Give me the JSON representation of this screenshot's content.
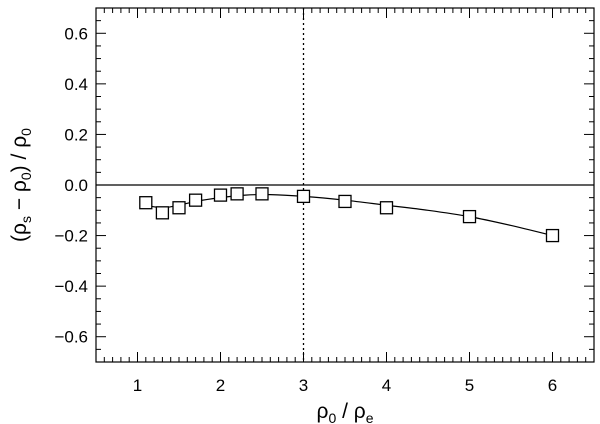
{
  "chart_data": {
    "type": "scatter",
    "xlabel": {
      "symbol": "ρ",
      "sub": "0",
      "sep": " / ",
      "symbol2": "ρ",
      "sub2": "e"
    },
    "ylabel": {
      "open": "(",
      "symbol": "ρ",
      "sub": "s",
      "minus": " − ",
      "symbol2": "ρ",
      "sub2": "0",
      "close": ")",
      "sep": " / ",
      "symbol3": "ρ",
      "sub3": "0"
    },
    "xlim": [
      0.5,
      6.5
    ],
    "ylim": [
      -0.7,
      0.7
    ],
    "x_ticks": [
      1,
      2,
      3,
      4,
      5,
      6
    ],
    "x_tick_labels": [
      "1",
      "2",
      "3",
      "4",
      "5",
      "6"
    ],
    "x_minor_step": 0.1,
    "y_ticks": [
      -0.6,
      -0.4,
      -0.2,
      0.0,
      0.2,
      0.4,
      0.6
    ],
    "y_tick_labels": [
      "−0.6",
      "−0.4",
      "−0.2",
      "0.0",
      "0.2",
      "0.4",
      "0.6"
    ],
    "y_minor_step": 0.05,
    "hline": 0.0,
    "vline": 3.0,
    "grid": false,
    "marker": "open-square",
    "series": [
      {
        "x": [
          1.1,
          1.3,
          1.5,
          1.7,
          2.0,
          2.2,
          2.5,
          3.0,
          3.5,
          4.0,
          5.0,
          6.0
        ],
        "y": [
          -0.07,
          -0.11,
          -0.09,
          -0.06,
          -0.04,
          -0.035,
          -0.035,
          -0.045,
          -0.065,
          -0.09,
          -0.125,
          -0.2
        ]
      }
    ],
    "curve": {
      "x": [
        1.1,
        1.3,
        1.5,
        1.7,
        2.0,
        2.3,
        2.6,
        3.0,
        3.5,
        4.0,
        4.5,
        5.0,
        5.5,
        6.0
      ],
      "y": [
        -0.08,
        -0.09,
        -0.08,
        -0.065,
        -0.05,
        -0.04,
        -0.038,
        -0.045,
        -0.06,
        -0.08,
        -0.1,
        -0.125,
        -0.16,
        -0.2
      ]
    }
  }
}
